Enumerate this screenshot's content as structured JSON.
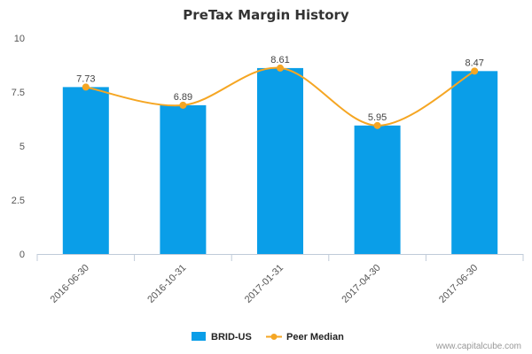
{
  "chart_data": {
    "type": "bar",
    "title": "PreTax Margin History",
    "xlabel": "",
    "ylabel": "",
    "categories": [
      "2016-06-30",
      "2016-10-31",
      "2017-01-31",
      "2017-04-30",
      "2017-06-30"
    ],
    "series": [
      {
        "name": "BRID-US",
        "type": "bar",
        "color": "#0a9ee8",
        "values": [
          7.73,
          6.89,
          8.61,
          5.95,
          8.47
        ]
      },
      {
        "name": "Peer Median",
        "type": "line",
        "color": "#f5a623",
        "values": [
          7.73,
          6.89,
          8.61,
          5.95,
          8.47
        ]
      }
    ],
    "data_labels": [
      "7.73",
      "6.89",
      "8.61",
      "5.95",
      "8.47"
    ],
    "ylim": [
      0,
      10
    ],
    "yticks": [
      "0",
      "2.5",
      "5",
      "7.5",
      "10"
    ],
    "yticks_values": [
      0,
      2.5,
      5,
      7.5,
      10
    ],
    "grid": false,
    "legend": "bottom-center"
  },
  "footer": {
    "credit": "www.capitalcube.com"
  }
}
